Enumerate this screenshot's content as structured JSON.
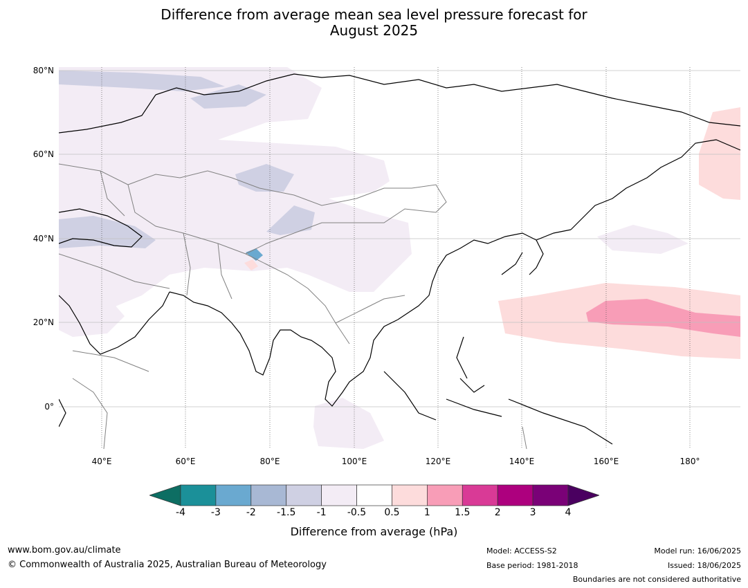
{
  "title_line1": "Difference from average mean sea level pressure forecast for",
  "title_line2": "August 2025",
  "map": {
    "lat_labels": [
      "80°N",
      "60°N",
      "40°N",
      "20°N",
      "0°"
    ],
    "lon_labels": [
      "40°E",
      "60°E",
      "80°E",
      "100°E",
      "120°E",
      "140°E",
      "160°E",
      "180°"
    ],
    "lat_range": [
      -10,
      81
    ],
    "lon_range": [
      30,
      192
    ],
    "colors": {
      "land_outline": "#000000",
      "borders": "#808080",
      "neg_0.5_1": "#f3ecf5",
      "neg_1_1.5": "#cfd0e3",
      "neg_1.5_2": "#a8b8d4",
      "pos_0.5_1": "#fddcdc",
      "pos_1_1.5": "#f89db7"
    }
  },
  "colorbar": {
    "title": "Difference from average (hPa)",
    "labels": [
      "-4",
      "-3",
      "-2",
      "-1.5",
      "-1",
      "-0.5",
      "0.5",
      "1",
      "1.5",
      "2",
      "3",
      "4"
    ],
    "colors": [
      "#1b9099",
      "#6aa9d0",
      "#a8b8d4",
      "#cfd0e3",
      "#f3ecf5",
      "#ffffff",
      "#fddcdc",
      "#f89db7",
      "#d93a96",
      "#ad007e",
      "#7a0177"
    ],
    "low_extend_color": "#0d6e63",
    "high_extend_color": "#4a0060"
  },
  "footer": {
    "website": "www.bom.gov.au/climate",
    "copyright": "© Commonwealth of Australia 2025, Australian Bureau of Meteorology",
    "model": "Model: ACCESS-S2",
    "base_period": "Base period: 1981-2018",
    "model_run": "Model run: 16/06/2025",
    "issued": "Issued: 18/06/2025",
    "disclaimer": "Boundaries are not considered authoritative"
  }
}
